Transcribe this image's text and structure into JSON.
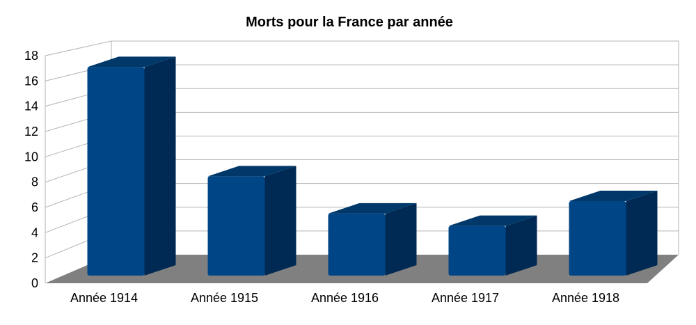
{
  "chart_data": {
    "type": "bar",
    "title": "Morts pour la France par année",
    "xlabel": "",
    "ylabel": "",
    "categories": [
      "Année 1914",
      "Année 1915",
      "Année 1916",
      "Année 1917",
      "Année 1918"
    ],
    "values": [
      16.8,
      8.0,
      5.0,
      4.0,
      6.0
    ],
    "ylim": [
      0,
      18
    ],
    "yticks": [
      "0",
      "2",
      "4",
      "6",
      "8",
      "10",
      "12",
      "14",
      "16",
      "18"
    ],
    "grid": true,
    "style": "3d-bar",
    "colors": {
      "bar_front": "#004586",
      "bar_side": "#002A54",
      "bar_top": "#003869",
      "floor": "#808080",
      "grid": "#b3b3b3",
      "wall_edge": "#b3b3b3"
    }
  }
}
